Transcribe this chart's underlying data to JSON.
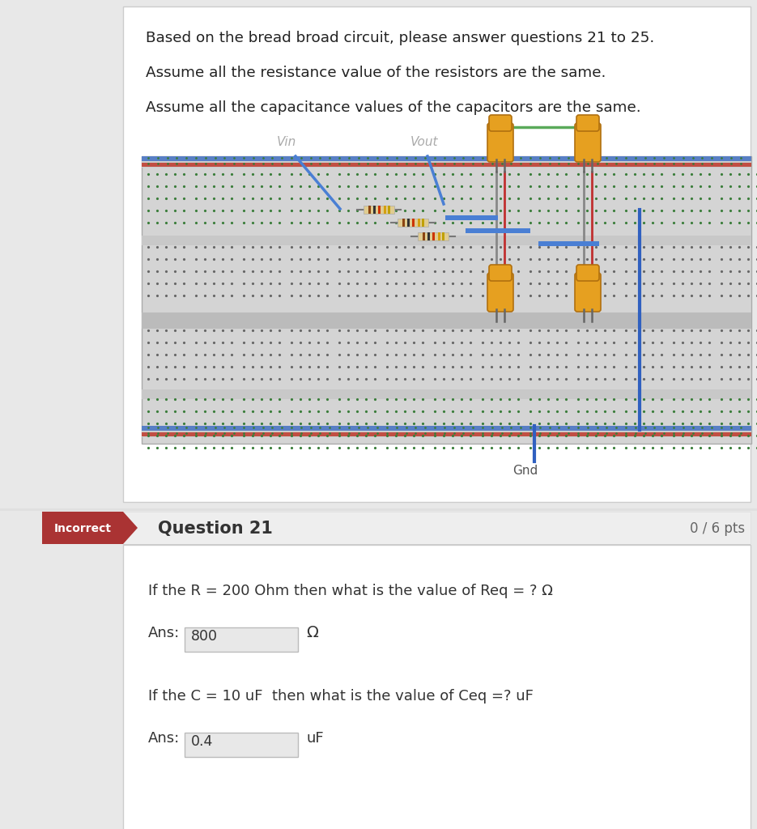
{
  "bg_color": "#e8e8e8",
  "top_panel_bg": "#ffffff",
  "top_panel_border": "#cccccc",
  "text_line1": "Based on the bread broad circuit, please answer questions 21 to 25.",
  "text_line2": "Assume all the resistance value of the resistors are the same.",
  "text_line3": "Assume all the capacitance values of the capacitors are the same.",
  "vin_label": "Vin",
  "vout_label": "Vout",
  "gnd_label": "Gnd",
  "breadboard_bg": "#d4d4d4",
  "breadboard_stripe": "#c0c0c0",
  "breadboard_rail_blue": "#4472c4",
  "breadboard_rail_red": "#c0392b",
  "dot_color_green": "#3a7d3a",
  "dot_color_dark": "#666666",
  "capacitor_color": "#e6a020",
  "capacitor_edge": "#b07010",
  "wire_blue": "#4a7fd4",
  "wire_blue2": "#3060c0",
  "wire_green": "#50a050",
  "wire_gray": "#888888",
  "wire_red": "#c03030",
  "incorrect_bg": "#aa3333",
  "incorrect_text": "Incorrect",
  "question_label": "Question 21",
  "pts_label": "0 / 6 pts",
  "q1_text": "If the R = 200 Ohm then what is the value of Req = ? Ω",
  "q1_ans": "800",
  "q1_unit": "Ω",
  "q2_text": "If the C = 10 uF  then what is the value of Ceq =? uF",
  "q2_ans": "0.4",
  "q2_unit": "uF",
  "bottom_panel_bg": "#ffffff",
  "bottom_panel_border": "#cccccc",
  "separator_color": "#cccccc",
  "question_header_bg": "#eeeeee",
  "ans_box_bg": "#e8e8e8",
  "ans_box_border": "#bbbbbb",
  "number_row_color": "#bbbbbb"
}
